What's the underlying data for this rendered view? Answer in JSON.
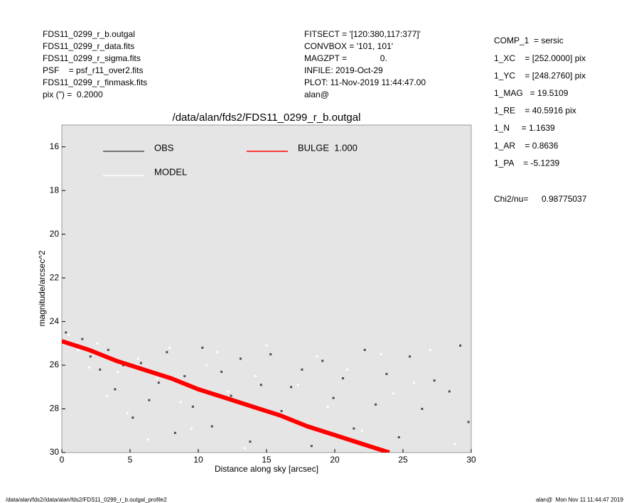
{
  "header": {
    "left": [
      "FDS11_0299_r_b.outgal",
      "FDS11_0299_r_data.fits",
      "FDS11_0299_r_sigma.fits",
      "PSF    = psf_r11_over2.fits",
      "FDS11_0299_r_finmask.fits",
      "pix (\") =  0.2000"
    ],
    "middle": [
      "FITSECT = '[120:380,117:377]'",
      "CONVBOX = '101, 101'",
      "MAGZPT =              0.",
      "INFILE: 2019-Oct-29",
      "PLOT: 11-Nov-2019 11:44:47.00",
      "alan@"
    ],
    "right": [
      "COMP_1  = sersic",
      "1_XC    = [252.0000] pix",
      "1_YC    = [248.2760] pix",
      "1_MAG   = 19.5109",
      "1_RE    = 40.5916 pix",
      "1_N     = 1.1639",
      "1_AR    = 0.8636",
      "1_PA    = -5.1239"
    ],
    "chi2_label": "Chi2/nu=",
    "chi2_value": "0.98775037"
  },
  "footer": {
    "left": "/data/alan/fds2//data/alan/fds2/FDS11_0299_r_b.outgal_profile2",
    "right": "alan@  Mon Nov 11 11:44:47 2019"
  },
  "chart_data": {
    "type": "scatter",
    "title": "/data/alan/fds2/FDS11_0299_r_b.outgal",
    "xlabel": "Distance along sky [arcsec]",
    "ylabel": "magnitude/arcsec^2",
    "xlim": [
      0,
      30
    ],
    "ylim": [
      15,
      30
    ],
    "invert_y": true,
    "xticks": [
      0,
      5,
      10,
      15,
      20,
      25,
      30
    ],
    "yticks": [
      16,
      18,
      20,
      22,
      24,
      26,
      28,
      30
    ],
    "background": "#e5e5e5",
    "legend": "upper left",
    "series": [
      {
        "name": "OBS",
        "color": "#4d4d4d",
        "mode": "points",
        "x": [
          0.3,
          0.9,
          1.5,
          2.1,
          2.8,
          3.4,
          3.9,
          4.5,
          5.2,
          5.8,
          6.4,
          7.1,
          7.7,
          8.3,
          9.0,
          9.6,
          10.3,
          11.0,
          11.7,
          12.4,
          13.1,
          13.8,
          14.6,
          15.3,
          16.1,
          16.8,
          17.6,
          18.3,
          19.1,
          19.9,
          20.6,
          21.4,
          22.2,
          23.0,
          23.8,
          24.7,
          25.5,
          26.4,
          27.3,
          28.4,
          29.2,
          29.8
        ],
        "values": [
          24.5,
          25.1,
          24.8,
          25.6,
          26.2,
          25.3,
          27.1,
          26.0,
          28.4,
          25.9,
          27.6,
          26.8,
          25.4,
          29.1,
          26.5,
          27.9,
          25.2,
          28.8,
          26.3,
          27.4,
          25.7,
          29.5,
          26.9,
          25.5,
          28.1,
          27.0,
          26.2,
          29.7,
          25.8,
          27.5,
          26.6,
          28.9,
          25.3,
          27.8,
          26.4,
          29.3,
          25.6,
          28.0,
          26.7,
          27.2,
          25.1,
          28.6
        ]
      },
      {
        "name": "MODEL",
        "color": "#ffffff",
        "mode": "points",
        "x": [
          0.5,
          1.2,
          2.0,
          2.6,
          3.3,
          4.1,
          4.8,
          5.6,
          6.3,
          7.0,
          7.9,
          8.7,
          9.5,
          10.6,
          11.4,
          12.2,
          13.4,
          14.2,
          15.0,
          16.4,
          17.3,
          18.7,
          19.5,
          20.9,
          22.0,
          23.4,
          24.3,
          25.8,
          27.0,
          28.8
        ],
        "values": [
          24.6,
          25.3,
          26.1,
          25.0,
          27.4,
          26.3,
          28.2,
          25.7,
          29.4,
          26.6,
          25.2,
          27.7,
          28.9,
          26.0,
          25.4,
          27.2,
          29.8,
          26.5,
          25.1,
          28.3,
          26.9,
          25.6,
          27.9,
          26.2,
          29.0,
          25.5,
          27.3,
          26.8,
          25.3,
          29.6
        ]
      },
      {
        "name": "BULGE  1.000",
        "color": "#ff0000",
        "mode": "line",
        "x": [
          0,
          2,
          4,
          6,
          8,
          10,
          12,
          14,
          16,
          18,
          20,
          22,
          24
        ],
        "values": [
          24.9,
          25.3,
          25.8,
          26.2,
          26.6,
          27.1,
          27.5,
          27.9,
          28.3,
          28.8,
          29.2,
          29.6,
          30.0
        ]
      }
    ]
  }
}
